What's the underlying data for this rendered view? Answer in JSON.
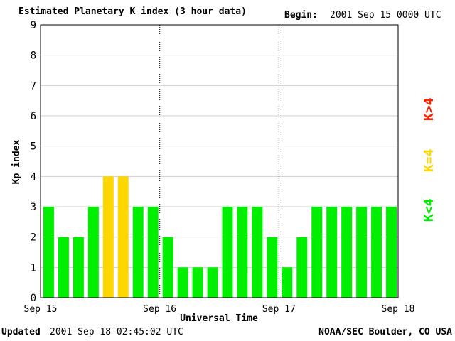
{
  "header": {
    "title": "Estimated Planetary K index (3 hour data)",
    "begin_label": "Begin:",
    "begin_value": "2001 Sep 15 0000 UTC"
  },
  "footer": {
    "updated_label": "Updated",
    "updated_value": "2001 Sep 18 02:45:02 UTC",
    "credit": "NOAA/SEC Boulder, CO USA"
  },
  "legend": [
    {
      "label": "K<4",
      "color": "#00ee00"
    },
    {
      "label": "K=4",
      "color": "#ffd700"
    },
    {
      "label": "K>4",
      "color": "#ff2200"
    }
  ],
  "chart_data": {
    "type": "bar",
    "title": "Estimated Planetary K index (3 hour data)",
    "xlabel": "Universal Time",
    "ylabel": "Kp index",
    "ylim": [
      0,
      9
    ],
    "yticks": [
      0,
      1,
      2,
      3,
      4,
      5,
      6,
      7,
      8,
      9
    ],
    "xtick_labels": [
      "Sep 15",
      "Sep 16",
      "Sep 17",
      "Sep 18"
    ],
    "day_separators": [
      "Sep 16",
      "Sep 17"
    ],
    "interval_hours": 3,
    "values": [
      3,
      2,
      2,
      3,
      4,
      4,
      3,
      3,
      2,
      1,
      1,
      1,
      3,
      3,
      3,
      2,
      1,
      2,
      3,
      3,
      3,
      3,
      3,
      3
    ],
    "colors": {
      "below_4": "#00ee00",
      "equal_4": "#ffd700",
      "above_4": "#ff2200"
    },
    "grid": "horizontal"
  }
}
